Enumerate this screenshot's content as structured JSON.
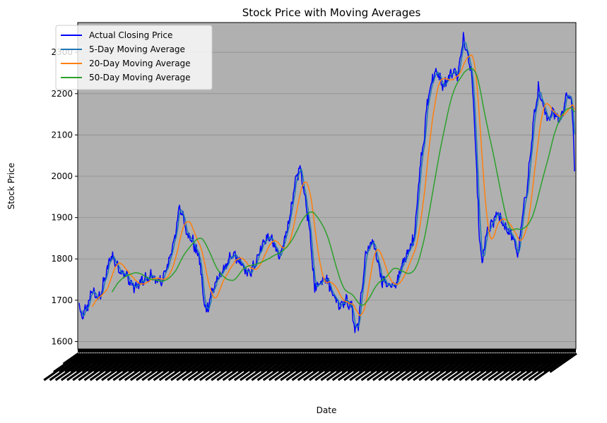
{
  "chart_data": {
    "type": "line",
    "title": "Stock Price with Moving Averages",
    "xlabel": "Date",
    "ylabel": "Stock Price",
    "ylim": [
      1582,
      2372
    ],
    "yticks": [
      1600,
      1700,
      1800,
      1900,
      2000,
      2100,
      2200,
      2300
    ],
    "xticks_note": "dense overlapping rotated date labels (illegible)",
    "grid": "y-axis only",
    "legend_position": "top-left",
    "plot_background": "#b0b0b0",
    "anchors": [
      [
        0,
        1690
      ],
      [
        3,
        1655
      ],
      [
        10,
        1675
      ],
      [
        20,
        1725
      ],
      [
        28,
        1700
      ],
      [
        35,
        1730
      ],
      [
        48,
        1810
      ],
      [
        58,
        1780
      ],
      [
        70,
        1760
      ],
      [
        82,
        1730
      ],
      [
        95,
        1745
      ],
      [
        108,
        1760
      ],
      [
        120,
        1740
      ],
      [
        130,
        1770
      ],
      [
        138,
        1820
      ],
      [
        146,
        1880
      ],
      [
        150,
        1925
      ],
      [
        155,
        1905
      ],
      [
        162,
        1860
      ],
      [
        170,
        1840
      ],
      [
        180,
        1800
      ],
      [
        186,
        1700
      ],
      [
        190,
        1672
      ],
      [
        198,
        1720
      ],
      [
        210,
        1760
      ],
      [
        222,
        1790
      ],
      [
        232,
        1810
      ],
      [
        245,
        1780
      ],
      [
        255,
        1760
      ],
      [
        265,
        1800
      ],
      [
        275,
        1840
      ],
      [
        285,
        1855
      ],
      [
        295,
        1820
      ],
      [
        300,
        1800
      ],
      [
        310,
        1870
      ],
      [
        318,
        1930
      ],
      [
        325,
        2000
      ],
      [
        330,
        2020
      ],
      [
        335,
        1975
      ],
      [
        342,
        1900
      ],
      [
        348,
        1800
      ],
      [
        352,
        1730
      ],
      [
        358,
        1740
      ],
      [
        368,
        1760
      ],
      [
        378,
        1720
      ],
      [
        388,
        1690
      ],
      [
        398,
        1700
      ],
      [
        408,
        1680
      ],
      [
        412,
        1625
      ],
      [
        418,
        1650
      ],
      [
        422,
        1720
      ],
      [
        428,
        1810
      ],
      [
        438,
        1840
      ],
      [
        446,
        1800
      ],
      [
        452,
        1750
      ],
      [
        460,
        1740
      ],
      [
        470,
        1730
      ],
      [
        478,
        1760
      ],
      [
        488,
        1810
      ],
      [
        495,
        1830
      ],
      [
        500,
        1850
      ],
      [
        504,
        1920
      ],
      [
        510,
        2030
      ],
      [
        516,
        2100
      ],
      [
        520,
        2180
      ],
      [
        528,
        2240
      ],
      [
        536,
        2250
      ],
      [
        544,
        2215
      ],
      [
        552,
        2235
      ],
      [
        560,
        2260
      ],
      [
        566,
        2240
      ],
      [
        570,
        2300
      ],
      [
        574,
        2330
      ],
      [
        578,
        2310
      ],
      [
        582,
        2280
      ],
      [
        586,
        2250
      ],
      [
        590,
        2150
      ],
      [
        594,
        2000
      ],
      [
        598,
        1850
      ],
      [
        602,
        1785
      ],
      [
        608,
        1860
      ],
      [
        616,
        1880
      ],
      [
        624,
        1910
      ],
      [
        632,
        1890
      ],
      [
        640,
        1870
      ],
      [
        648,
        1850
      ],
      [
        656,
        1810
      ],
      [
        662,
        1900
      ],
      [
        668,
        1960
      ],
      [
        674,
        2050
      ],
      [
        680,
        2150
      ],
      [
        686,
        2210
      ],
      [
        692,
        2170
      ],
      [
        700,
        2140
      ],
      [
        708,
        2160
      ],
      [
        716,
        2140
      ],
      [
        722,
        2150
      ],
      [
        728,
        2200
      ],
      [
        734,
        2190
      ],
      [
        738,
        2130
      ],
      [
        740,
        2025
      ]
    ],
    "series": [
      {
        "name": "Actual Closing Price",
        "color": "#0000ff",
        "window": 1
      },
      {
        "name": "5-Day Moving Average",
        "color": "#1f77b4",
        "window": 5
      },
      {
        "name": "20-Day Moving Average",
        "color": "#ff7f0e",
        "window": 20
      },
      {
        "name": "50-Day Moving Average",
        "color": "#2ca02c",
        "window": 50
      }
    ]
  }
}
